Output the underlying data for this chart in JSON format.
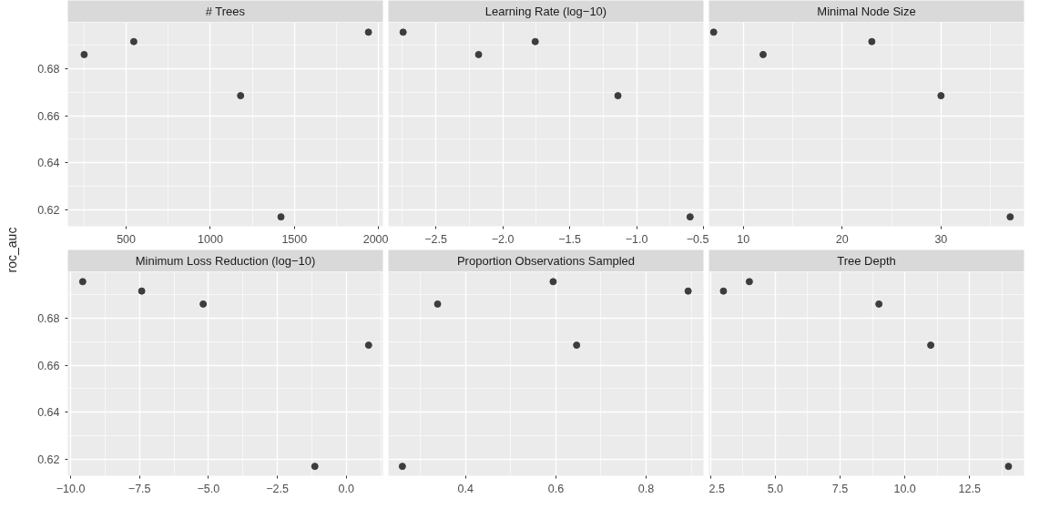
{
  "chart_data": [
    {
      "type": "scatter",
      "title": "# Trees",
      "ylabel": "roc_auc",
      "x": [
        250,
        545,
        1180,
        1420,
        1940
      ],
      "values": [
        0.686,
        0.6915,
        0.6685,
        0.617,
        0.6955
      ],
      "color": "#3d3d3d",
      "marker": "circle",
      "grid": true,
      "xlim": [
        153,
        2026
      ],
      "xticks": [
        500,
        1000,
        1500,
        2000
      ],
      "ylim": [
        0.613,
        0.6997
      ],
      "yticks": [
        0.62,
        0.64,
        0.66,
        0.68
      ]
    },
    {
      "type": "scatter",
      "title": "Learning Rate (log−10)",
      "x": [
        -2.744,
        -2.18,
        -1.757,
        -1.139,
        -0.6
      ],
      "values": [
        0.6955,
        0.686,
        0.6915,
        0.6685,
        0.617
      ],
      "color": "#3d3d3d",
      "marker": "circle",
      "grid": true,
      "tick_labels": "x",
      "xlim": [
        -2.854,
        -0.5
      ],
      "xticks": [
        {
          "value": -2.5,
          "label": "−2.5"
        },
        {
          "value": -2.0,
          "label": "−2.0"
        },
        {
          "value": -1.5,
          "label": "−1.5"
        },
        {
          "value": -1.0,
          "label": "−1.0"
        },
        {
          "value": -0.5,
          "label": "−0.5"
        }
      ],
      "ylim": [
        0.613,
        0.6997
      ],
      "yticks": [
        0.62,
        0.64,
        0.66,
        0.68
      ]
    },
    {
      "type": "scatter",
      "title": "Minimal Node Size",
      "x": [
        7,
        12,
        23,
        30,
        37
      ],
      "values": [
        0.6955,
        0.686,
        0.6915,
        0.6685,
        0.617
      ],
      "color": "#3d3d3d",
      "marker": "circle",
      "grid": true,
      "tick_labels": "x",
      "xlim": [
        6.52,
        38.4
      ],
      "xticks": [
        10,
        20,
        30
      ],
      "ylim": [
        0.613,
        0.6997
      ],
      "yticks": [
        0.62,
        0.64,
        0.66,
        0.68
      ]
    },
    {
      "type": "scatter",
      "title": "Minimum Loss Reduction (log−10)",
      "x": [
        -9.56,
        -7.42,
        -5.19,
        -1.14,
        0.81
      ],
      "values": [
        0.6955,
        0.6915,
        0.686,
        0.617,
        0.6685
      ],
      "color": "#3d3d3d",
      "marker": "circle",
      "grid": true,
      "xlim": [
        -10.1,
        1.33
      ],
      "xticks": [
        {
          "value": -10,
          "label": "−10.0"
        },
        {
          "value": -7.5,
          "label": "−7.5"
        },
        {
          "value": -5,
          "label": "−5.0"
        },
        {
          "value": -2.5,
          "label": "−2.5"
        },
        {
          "value": 0,
          "label": "0.0"
        }
      ],
      "ylim": [
        0.613,
        0.6997
      ],
      "yticks": [
        0.62,
        0.64,
        0.66,
        0.68
      ]
    },
    {
      "type": "scatter",
      "title": "Proportion Observations Sampled",
      "x": [
        0.26,
        0.338,
        0.594,
        0.646,
        0.893
      ],
      "values": [
        0.617,
        0.686,
        0.6955,
        0.6685,
        0.6915
      ],
      "color": "#3d3d3d",
      "marker": "circle",
      "grid": true,
      "tick_labels": "x",
      "xlim": [
        0.229,
        0.927
      ],
      "xticks": [
        {
          "value": 0.4,
          "label": "0.4"
        },
        {
          "value": 0.6,
          "label": "0.6"
        },
        {
          "value": 0.8,
          "label": "0.8"
        }
      ],
      "ylim": [
        0.613,
        0.6997
      ],
      "yticks": [
        0.62,
        0.64,
        0.66,
        0.68
      ]
    },
    {
      "type": "scatter",
      "title": "Tree Depth",
      "x": [
        3,
        4,
        9,
        11,
        14
      ],
      "values": [
        0.6915,
        0.6955,
        0.686,
        0.6685,
        0.617
      ],
      "color": "#3d3d3d",
      "marker": "circle",
      "grid": true,
      "tick_labels": "x",
      "xlim": [
        2.44,
        14.6
      ],
      "xticks": [
        {
          "value": 2.5,
          "label": "2.5"
        },
        {
          "value": 5,
          "label": "5.0"
        },
        {
          "value": 7.5,
          "label": "7.5"
        },
        {
          "value": 10,
          "label": "10.0"
        },
        {
          "value": 12.5,
          "label": "12.5"
        }
      ],
      "ylim": [
        0.613,
        0.6997
      ],
      "yticks": [
        0.62,
        0.64,
        0.66,
        0.68
      ]
    }
  ]
}
